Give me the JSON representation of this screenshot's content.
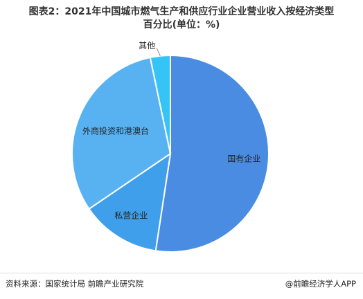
{
  "chart_data": {
    "type": "pie",
    "title": "图表2：2021年中国城市燃气生产和供应行业企业营业收入按经济类型百分比(单位：%)",
    "categories": [
      "国有企业",
      "私营企业",
      "外商投资和港澳台",
      "其他"
    ],
    "values": [
      52.4,
      13.1,
      31.2,
      3.3
    ],
    "colors": [
      "#4a8ce2",
      "#3f9fea",
      "#58b2f2",
      "#36c4f6"
    ],
    "source": "资料来源：国家统计局 前瞻产业研究院",
    "credit": "@前瞻经济学人APP"
  }
}
